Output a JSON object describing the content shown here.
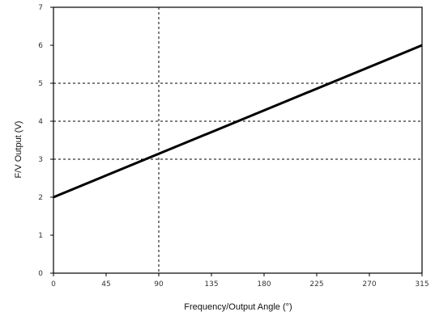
{
  "chart_data": {
    "type": "line",
    "xlabel": "Frequency/Output Angle (°)",
    "ylabel": "F/V Output (V)",
    "xlim": [
      0,
      315
    ],
    "ylim": [
      0,
      7
    ],
    "x_ticks": [
      {
        "value": 0,
        "label": "0"
      },
      {
        "value": 45,
        "label": "45"
      },
      {
        "value": 90,
        "label": "90"
      },
      {
        "value": 135,
        "label": "135"
      },
      {
        "value": 180,
        "label": "180"
      },
      {
        "value": 225,
        "label": "225"
      },
      {
        "value": 270,
        "label": "270"
      },
      {
        "value": 315,
        "label": "315"
      }
    ],
    "y_ticks": [
      {
        "value": 0,
        "label": "0"
      },
      {
        "value": 1,
        "label": "1"
      },
      {
        "value": 2,
        "label": "2"
      },
      {
        "value": 3,
        "label": "3"
      },
      {
        "value": 4,
        "label": "4"
      },
      {
        "value": 5,
        "label": "5"
      },
      {
        "value": 6,
        "label": "6"
      },
      {
        "value": 7,
        "label": "7"
      }
    ],
    "dashed_gridlines": {
      "x": [
        90
      ],
      "y": [
        3,
        4,
        5
      ]
    },
    "series": [
      {
        "x": [
          0,
          315
        ],
        "y": [
          2.0,
          6.0
        ]
      }
    ],
    "line_color": "#000000",
    "grid_color": "#000000"
  }
}
